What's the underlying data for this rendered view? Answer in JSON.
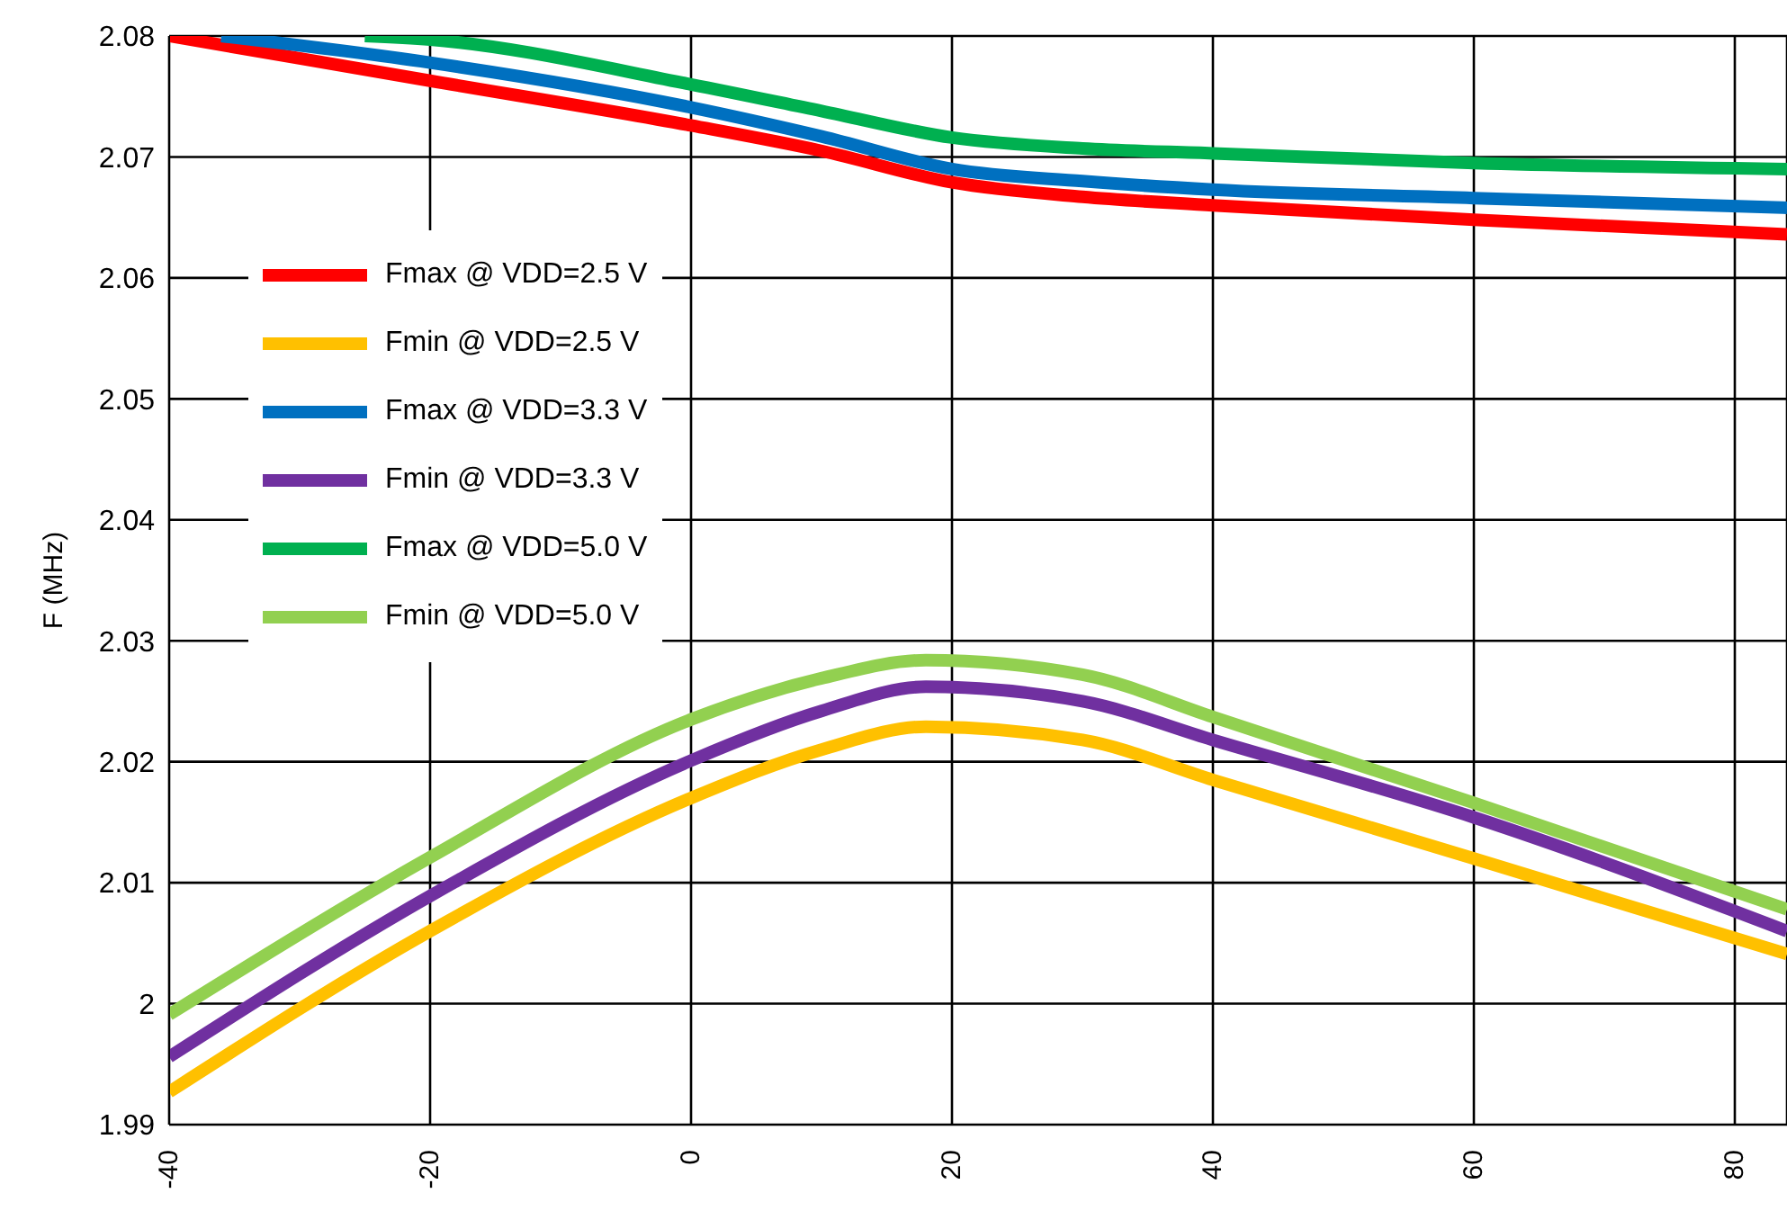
{
  "chart_data": {
    "type": "line",
    "ylabel": "F (MHz)",
    "xlim": [
      -40,
      84
    ],
    "xticks": [
      -40,
      -20,
      0,
      20,
      40,
      60,
      80
    ],
    "ylim": [
      1.99,
      2.08
    ],
    "yticks": [
      1.99,
      2,
      2.01,
      2.02,
      2.03,
      2.04,
      2.05,
      2.06,
      2.07,
      2.08
    ],
    "grid": true,
    "legend": "top left",
    "marker": "none",
    "line_style": "solid",
    "series": [
      {
        "name": "Fmax @ VDD=2.5 V",
        "color": "#ff0000",
        "x": [
          -40,
          -20,
          0,
          10,
          20,
          30,
          40,
          60,
          84
        ],
        "values": [
          2.08,
          2.0763,
          2.0726,
          2.0705,
          2.0679,
          2.0667,
          2.066,
          2.0648,
          2.0636
        ]
      },
      {
        "name": "Fmin @ VDD=2.5 V",
        "color": "#ffc000",
        "x": [
          -40,
          -20,
          0,
          10,
          18,
          30,
          40,
          60,
          84
        ],
        "values": [
          1.9927,
          2.006,
          2.017,
          2.021,
          2.0229,
          2.0218,
          2.0185,
          2.012,
          2.0041
        ]
      },
      {
        "name": "Fmax @ VDD=3.3 V",
        "color": "#0070c0",
        "x": [
          -36,
          -20,
          0,
          10,
          20,
          30,
          40,
          60,
          84
        ],
        "values": [
          2.08,
          2.0778,
          2.0741,
          2.0717,
          2.069,
          2.068,
          2.0673,
          2.0666,
          2.0658
        ]
      },
      {
        "name": "Fmin @ VDD=3.3 V",
        "color": "#7030a0",
        "x": [
          -40,
          -20,
          0,
          10,
          18,
          30,
          40,
          60,
          84
        ],
        "values": [
          1.9956,
          2.0089,
          2.0201,
          2.0242,
          2.0262,
          2.025,
          2.0218,
          2.0154,
          2.006
        ]
      },
      {
        "name": "Fmax @ VDD=5.0 V",
        "color": "#00b050",
        "x": [
          -25,
          -20,
          0,
          10,
          20,
          30,
          40,
          60,
          84
        ],
        "values": [
          2.08,
          2.0797,
          2.076,
          2.0738,
          2.0716,
          2.0707,
          2.0703,
          2.0695,
          2.069
        ]
      },
      {
        "name": "Fmin @ VDD=5.0 V",
        "color": "#92d050",
        "x": [
          -40,
          -20,
          0,
          10,
          18,
          30,
          40,
          60,
          84
        ],
        "values": [
          1.9991,
          2.0121,
          2.0235,
          2.0269,
          2.0284,
          2.0272,
          2.0237,
          2.0166,
          2.0078
        ]
      }
    ]
  }
}
